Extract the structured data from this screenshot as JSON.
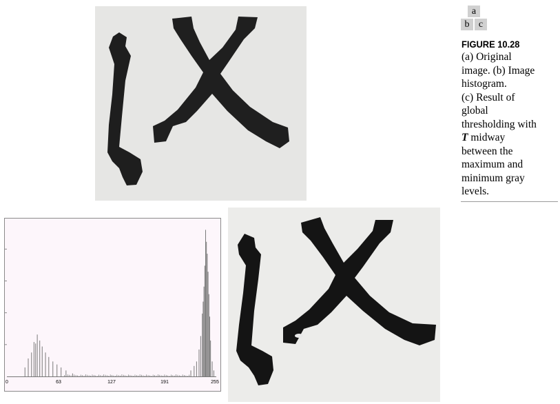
{
  "layout_key": {
    "a": "a",
    "b": "b",
    "c": "c"
  },
  "figure_label": "FIGURE 10.28",
  "caption_lines": [
    "(a) Original",
    "image. (b) Image",
    "histogram.",
    "(c) Result of",
    "global",
    "thresholding with",
    "",
    "between the",
    "maximum and",
    "minimum gray",
    "levels."
  ],
  "caption_T": "T",
  "caption_midway": " midway",
  "chart_data": {
    "type": "bar",
    "xlim": [
      0,
      255
    ],
    "x_ticks": [
      "0",
      "63",
      "127",
      "191",
      "255"
    ],
    "grid": false,
    "legend": "none",
    "bar_color": "#7a7a7a",
    "y_max": 1.0,
    "peaks": [
      {
        "x": [
          22,
          26,
          30,
          33,
          35,
          37,
          40,
          43,
          47,
          51,
          56,
          61,
          66,
          72,
          80
        ],
        "y": [
          0.06,
          0.12,
          0.16,
          0.23,
          0.22,
          0.28,
          0.24,
          0.2,
          0.16,
          0.13,
          0.1,
          0.08,
          0.06,
          0.04,
          0.02
        ]
      },
      {
        "x": [
          224,
          228,
          231,
          234,
          236,
          238,
          239,
          240,
          241,
          242,
          243,
          244,
          245,
          246,
          247,
          248,
          250,
          252
        ],
        "y": [
          0.04,
          0.07,
          0.1,
          0.18,
          0.27,
          0.42,
          0.5,
          0.6,
          0.74,
          0.98,
          0.9,
          0.82,
          0.7,
          0.55,
          0.4,
          0.24,
          0.1,
          0.04
        ]
      }
    ]
  }
}
